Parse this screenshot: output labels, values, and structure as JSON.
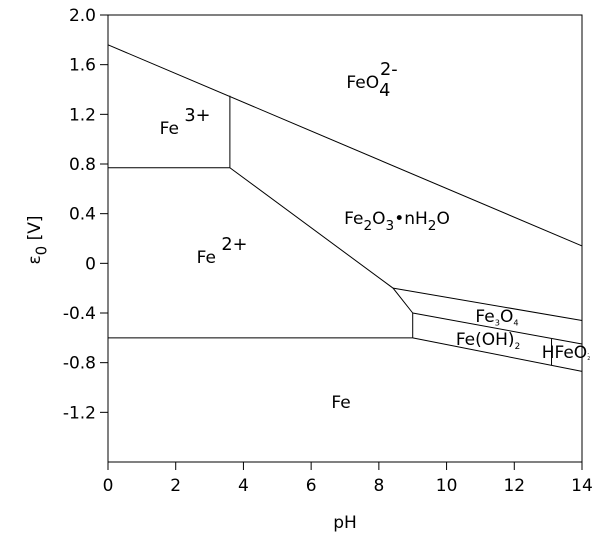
{
  "chart_data": {
    "type": "line",
    "x_label": "pH",
    "y_label": {
      "parts": [
        {
          "t": "ε"
        },
        {
          "t": "0",
          "s": "sub"
        },
        {
          "t": "  [V]"
        }
      ]
    },
    "xlim": [
      0,
      14
    ],
    "xticks": [
      0,
      2,
      4,
      6,
      8,
      10,
      12,
      14
    ],
    "ylim": [
      -1.6,
      2.0
    ],
    "yticks": [
      {
        "value": 2.0,
        "label": "2.0"
      },
      1.6,
      1.2,
      0.8,
      0.4,
      0,
      -0.4,
      -0.8,
      -1.2
    ],
    "series": [
      {
        "color": "#000000",
        "x": [
          0,
          14
        ],
        "values": [
          1.76,
          0.14
        ]
      },
      {
        "color": "#000000",
        "x": [
          0,
          3.6
        ],
        "values": [
          0.77,
          0.77
        ]
      },
      {
        "color": "#000000",
        "x": [
          3.6,
          3.6
        ],
        "values": [
          0.77,
          1.35
        ]
      },
      {
        "color": "#000000",
        "x": [
          3.6,
          8.42,
          9.0
        ],
        "values": [
          0.77,
          -0.2,
          -0.4
        ]
      },
      {
        "color": "#000000",
        "x": [
          9.0,
          9.0
        ],
        "values": [
          -0.4,
          -0.6
        ]
      },
      {
        "color": "#000000",
        "x": [
          0,
          9.0
        ],
        "values": [
          -0.6,
          -0.6
        ]
      },
      {
        "color": "#000000",
        "x": [
          8.42,
          14
        ],
        "values": [
          -0.2,
          -0.46
        ]
      },
      {
        "color": "#000000",
        "x": [
          9.0,
          14
        ],
        "values": [
          -0.4,
          -0.65
        ]
      },
      {
        "color": "#000000",
        "x": [
          9.0,
          14
        ],
        "values": [
          -0.6,
          -0.87
        ]
      },
      {
        "color": "#000000",
        "x": [
          13.1,
          13.1
        ],
        "values": [
          -0.61,
          -0.82
        ]
      }
    ],
    "annotations": [
      {
        "parts": [
          {
            "t": "FeO"
          },
          {
            "t": "4",
            "s": "sub"
          },
          {
            "t": "2-",
            "s": "sup"
          }
        ]
      },
      {
        "parts": [
          {
            "t": "Fe "
          },
          {
            "t": "3+",
            "s": "sup"
          }
        ]
      },
      {
        "parts": [
          {
            "t": "Fe"
          },
          {
            "t": "2",
            "s": "sub"
          },
          {
            "t": "O"
          },
          {
            "t": "3",
            "s": "sub"
          },
          {
            "t": "•nH"
          },
          {
            "t": "2",
            "s": "sub"
          },
          {
            "t": "O"
          }
        ]
      },
      {
        "parts": [
          {
            "t": "Fe "
          },
          {
            "t": "2+",
            "s": "sup"
          }
        ]
      },
      {
        "parts": [
          {
            "t": "Fe"
          },
          {
            "t": "3",
            "s": "sub"
          },
          {
            "t": "O"
          },
          {
            "t": "4",
            "s": "sub"
          }
        ]
      },
      {
        "parts": [
          {
            "t": "Fe(OH)"
          },
          {
            "t": "2",
            "s": "sub"
          }
        ]
      },
      {
        "parts": [
          {
            "t": "HFeO"
          },
          {
            "t": "2",
            "s": "sub"
          },
          {
            "t": "-",
            "s": "sup"
          }
        ]
      },
      {
        "parts": [
          {
            "t": "Fe"
          }
        ]
      }
    ]
  }
}
